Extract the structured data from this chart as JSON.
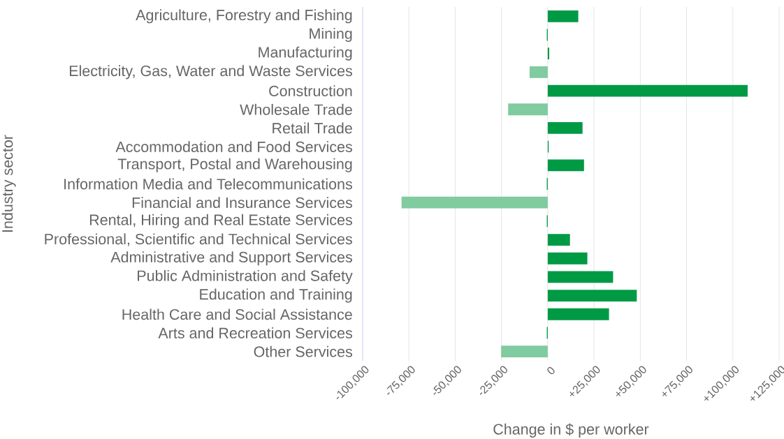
{
  "chart_data": {
    "type": "bar",
    "orientation": "horizontal",
    "xlabel": "Change in $ per worker",
    "ylabel": "Industry sector",
    "categories": [
      "Agriculture, Forestry and Fishing",
      "Mining",
      "Manufacturing",
      "Electricity, Gas, Water and Waste Services",
      "Construction",
      "Wholesale Trade",
      "Retail Trade",
      "Accommodation and Food Services",
      "Transport, Postal and Warehousing",
      "Information Media and Telecommunications",
      "Financial and Insurance Services",
      "Rental, Hiring and Real Estate Services",
      "Professional, Scientific and Technical Services",
      "Administrative and Support Services",
      "Public Administration and Safety",
      "Education and Training",
      "Health Care and Social Assistance",
      "Arts and Recreation Services",
      "Other Services"
    ],
    "values": [
      16500,
      -500,
      800,
      -9800,
      108000,
      -21400,
      18800,
      500,
      19600,
      -500,
      -79000,
      -500,
      12000,
      21400,
      35300,
      48100,
      33100,
      -500,
      -25200
    ],
    "colors": [
      "#009a44",
      "#009a44",
      "#009a44",
      "#80cba0",
      "#009a44",
      "#80cba0",
      "#009a44",
      "#009a44",
      "#009a44",
      "#009a44",
      "#80cba0",
      "#009a44",
      "#009a44",
      "#009a44",
      "#009a44",
      "#009a44",
      "#009a44",
      "#009a44",
      "#80cba0"
    ],
    "xlim": [
      -100000,
      125000
    ],
    "xticks": [
      {
        "value": -100000,
        "label": "-100,000"
      },
      {
        "value": -75000,
        "label": "-75,000"
      },
      {
        "value": -50000,
        "label": "-50,000"
      },
      {
        "value": -25000,
        "label": "-25,000"
      },
      0,
      {
        "value": 25000,
        "label": "+25,000"
      },
      {
        "value": 50000,
        "label": "+50,000"
      },
      {
        "value": 75000,
        "label": "+75,000"
      },
      {
        "value": 100000,
        "label": "+100,000"
      },
      {
        "value": 125000,
        "label": "+125,000"
      }
    ],
    "grid": "x"
  }
}
